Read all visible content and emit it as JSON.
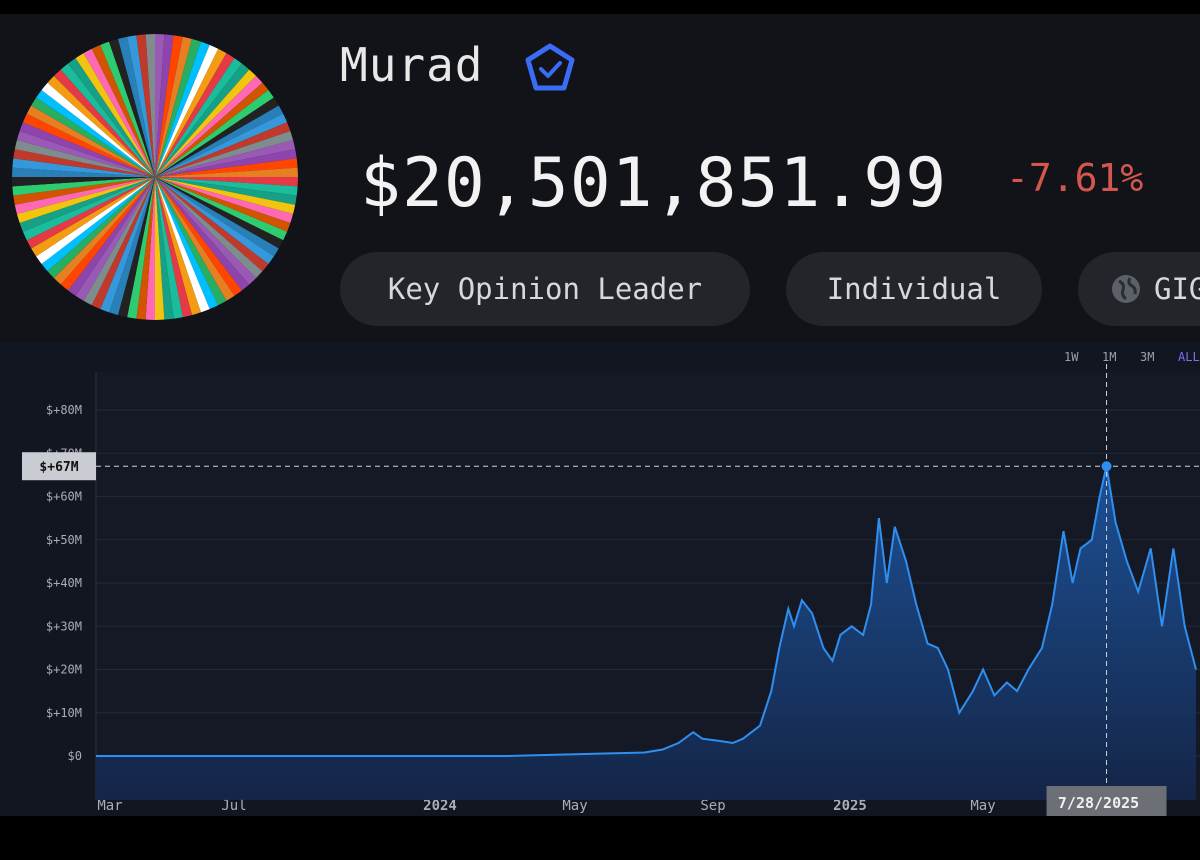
{
  "profile": {
    "name": "Murad",
    "verified_icon": "verified-badge-icon",
    "avatar": "multicolor-radial-avatar",
    "portfolio_value": "$20,501,851.99",
    "change_percent": "-7.61%"
  },
  "tags": [
    {
      "label": "Key Opinion Leader"
    },
    {
      "label": "Individual"
    },
    {
      "label": "GIG",
      "icon": "globe-icon"
    }
  ],
  "colors": {
    "background": "#111318",
    "chart_background": "#121621",
    "accent": "#2f8ff0",
    "negative": "#d4574f",
    "tag_background": "#23252b"
  },
  "chart_controls": {
    "ranges": [
      "1W",
      "1M",
      "3M",
      "ALL"
    ],
    "selected": "ALL"
  },
  "chart_data": {
    "type": "area",
    "title": "",
    "xlabel": "",
    "ylabel": "",
    "x_ticks": [
      "Mar",
      "Jul",
      "2024",
      "May",
      "Sep",
      "2025",
      "May"
    ],
    "y_ticks": [
      "$+80M",
      "$+70M",
      "$+60M",
      "$+50M",
      "$+40M",
      "$+30M",
      "$+20M",
      "$+10M",
      "$0"
    ],
    "ylim": [
      -10,
      80
    ],
    "grid": true,
    "crosshair": {
      "x": "7/28/2025",
      "y_label": "$+67M",
      "y": 67
    },
    "series": [
      {
        "values": [
          [
            "2023-03-01",
            0
          ],
          [
            "2023-05-01",
            0
          ],
          [
            "2023-07-01",
            0
          ],
          [
            "2023-09-01",
            0
          ],
          [
            "2023-11-01",
            0
          ],
          [
            "2024-01-01",
            0
          ],
          [
            "2024-02-15",
            0
          ],
          [
            "2024-03-15",
            0.2
          ],
          [
            "2024-04-15",
            0.4
          ],
          [
            "2024-05-15",
            0.6
          ],
          [
            "2024-06-15",
            0.8
          ],
          [
            "2024-07-01",
            1.5
          ],
          [
            "2024-07-15",
            3
          ],
          [
            "2024-07-28",
            5.5
          ],
          [
            "2024-08-05",
            4
          ],
          [
            "2024-08-20",
            3.5
          ],
          [
            "2024-09-01",
            3
          ],
          [
            "2024-09-10",
            4
          ],
          [
            "2024-09-25",
            7
          ],
          [
            "2024-10-05",
            15
          ],
          [
            "2024-10-12",
            25
          ],
          [
            "2024-10-20",
            34
          ],
          [
            "2024-10-25",
            30
          ],
          [
            "2024-11-01",
            36
          ],
          [
            "2024-11-10",
            33
          ],
          [
            "2024-11-20",
            25
          ],
          [
            "2024-11-28",
            22
          ],
          [
            "2024-12-05",
            28
          ],
          [
            "2024-12-15",
            30
          ],
          [
            "2024-12-25",
            28
          ],
          [
            "2025-01-01",
            35
          ],
          [
            "2025-01-08",
            55
          ],
          [
            "2025-01-15",
            40
          ],
          [
            "2025-01-22",
            53
          ],
          [
            "2025-02-01",
            45
          ],
          [
            "2025-02-10",
            35
          ],
          [
            "2025-02-20",
            26
          ],
          [
            "2025-03-01",
            25
          ],
          [
            "2025-03-10",
            20
          ],
          [
            "2025-03-20",
            10
          ],
          [
            "2025-04-01",
            15
          ],
          [
            "2025-04-10",
            20
          ],
          [
            "2025-04-20",
            14
          ],
          [
            "2025-05-01",
            17
          ],
          [
            "2025-05-10",
            15
          ],
          [
            "2025-05-20",
            20
          ],
          [
            "2025-06-01",
            25
          ],
          [
            "2025-06-10",
            35
          ],
          [
            "2025-06-20",
            52
          ],
          [
            "2025-06-28",
            40
          ],
          [
            "2025-07-05",
            48
          ],
          [
            "2025-07-15",
            50
          ],
          [
            "2025-07-22",
            60
          ],
          [
            "2025-07-28",
            67
          ],
          [
            "2025-08-05",
            54
          ],
          [
            "2025-08-15",
            45
          ],
          [
            "2025-08-25",
            38
          ],
          [
            "2025-09-05",
            48
          ],
          [
            "2025-09-15",
            30
          ],
          [
            "2025-09-25",
            48
          ],
          [
            "2025-10-05",
            30
          ],
          [
            "2025-10-15",
            20
          ]
        ]
      }
    ]
  }
}
